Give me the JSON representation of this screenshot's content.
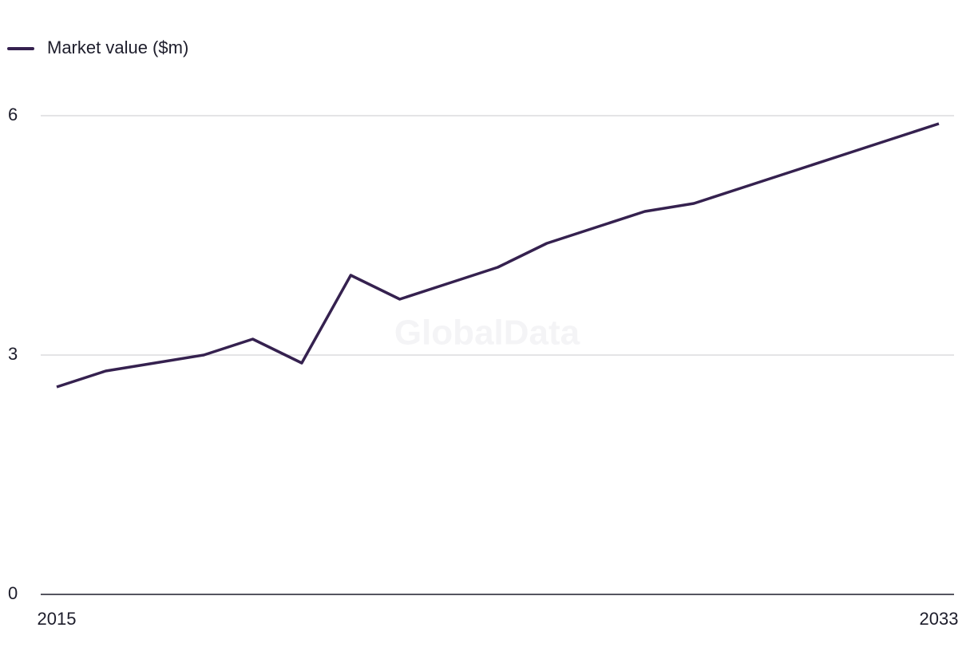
{
  "chart_data": {
    "type": "line",
    "watermark": "GlobalData",
    "x": [
      2015,
      2016,
      2017,
      2018,
      2019,
      2020,
      2021,
      2022,
      2023,
      2024,
      2025,
      2026,
      2027,
      2028,
      2029,
      2030,
      2031,
      2032,
      2033
    ],
    "series": [
      {
        "name": "Market value ($m)",
        "color": "#35214f",
        "values": [
          2.6,
          2.8,
          2.9,
          3.0,
          3.2,
          2.9,
          4.0,
          3.7,
          3.9,
          4.1,
          4.4,
          4.6,
          4.8,
          4.9,
          5.1,
          5.3,
          5.5,
          5.7,
          5.9
        ]
      }
    ],
    "xlim": [
      2015,
      2033
    ],
    "xticks": [
      2015,
      2033
    ],
    "ylim": [
      0,
      6
    ],
    "yticks": [
      0,
      3,
      6
    ],
    "grid": true
  }
}
